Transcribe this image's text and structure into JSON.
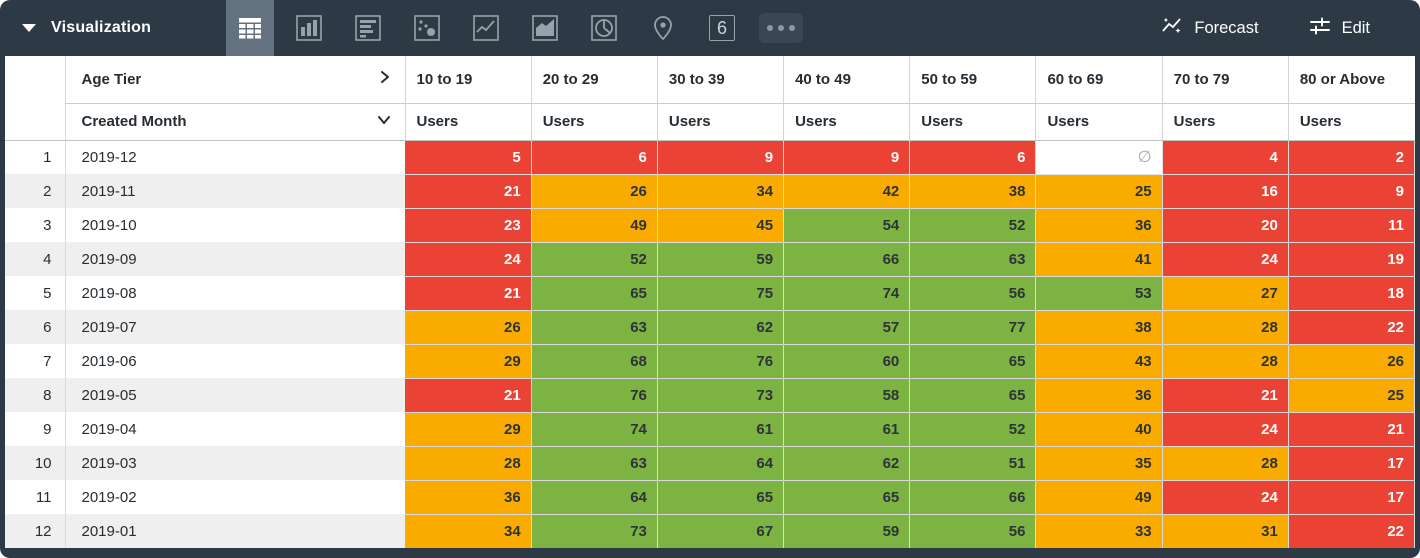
{
  "toolbar": {
    "title": "Visualization",
    "viz_types": [
      {
        "name": "table",
        "selected": true
      },
      {
        "name": "column-chart",
        "selected": false
      },
      {
        "name": "bar-chart",
        "selected": false
      },
      {
        "name": "scatter-plot",
        "selected": false
      },
      {
        "name": "line-chart",
        "selected": false
      },
      {
        "name": "area-chart",
        "selected": false
      },
      {
        "name": "pie-chart",
        "selected": false
      },
      {
        "name": "map",
        "selected": false
      },
      {
        "name": "single-value",
        "selected": false
      },
      {
        "name": "more-options",
        "selected": false
      }
    ],
    "single_value_label": "6",
    "forecast_label": "Forecast",
    "edit_label": "Edit"
  },
  "table": {
    "dimension_header": "Age Tier",
    "row_dimension_header": "Created Month",
    "measure_label": "Users",
    "tiers": [
      "10 to 19",
      "20 to 29",
      "30 to 39",
      "40 to 49",
      "50 to 59",
      "60 to 69",
      "70 to 79",
      "80 or Above"
    ],
    "rows": [
      {
        "index": "1",
        "month": "2019-12",
        "cells": [
          {
            "v": "5",
            "c": "red"
          },
          {
            "v": "6",
            "c": "red"
          },
          {
            "v": "9",
            "c": "red"
          },
          {
            "v": "9",
            "c": "red"
          },
          {
            "v": "6",
            "c": "red"
          },
          {
            "v": "∅",
            "c": "null"
          },
          {
            "v": "4",
            "c": "red"
          },
          {
            "v": "2",
            "c": "red"
          }
        ]
      },
      {
        "index": "2",
        "month": "2019-11",
        "cells": [
          {
            "v": "21",
            "c": "red"
          },
          {
            "v": "26",
            "c": "orange"
          },
          {
            "v": "34",
            "c": "orange"
          },
          {
            "v": "42",
            "c": "orange"
          },
          {
            "v": "38",
            "c": "orange"
          },
          {
            "v": "25",
            "c": "orange"
          },
          {
            "v": "16",
            "c": "red"
          },
          {
            "v": "9",
            "c": "red"
          }
        ]
      },
      {
        "index": "3",
        "month": "2019-10",
        "cells": [
          {
            "v": "23",
            "c": "red"
          },
          {
            "v": "49",
            "c": "orange"
          },
          {
            "v": "45",
            "c": "orange"
          },
          {
            "v": "54",
            "c": "green"
          },
          {
            "v": "52",
            "c": "green"
          },
          {
            "v": "36",
            "c": "orange"
          },
          {
            "v": "20",
            "c": "red"
          },
          {
            "v": "11",
            "c": "red"
          }
        ]
      },
      {
        "index": "4",
        "month": "2019-09",
        "cells": [
          {
            "v": "24",
            "c": "red"
          },
          {
            "v": "52",
            "c": "green"
          },
          {
            "v": "59",
            "c": "green"
          },
          {
            "v": "66",
            "c": "green"
          },
          {
            "v": "63",
            "c": "green"
          },
          {
            "v": "41",
            "c": "orange"
          },
          {
            "v": "24",
            "c": "red"
          },
          {
            "v": "19",
            "c": "red"
          }
        ]
      },
      {
        "index": "5",
        "month": "2019-08",
        "cells": [
          {
            "v": "21",
            "c": "red"
          },
          {
            "v": "65",
            "c": "green"
          },
          {
            "v": "75",
            "c": "green"
          },
          {
            "v": "74",
            "c": "green"
          },
          {
            "v": "56",
            "c": "green"
          },
          {
            "v": "53",
            "c": "green"
          },
          {
            "v": "27",
            "c": "orange"
          },
          {
            "v": "18",
            "c": "red"
          }
        ]
      },
      {
        "index": "6",
        "month": "2019-07",
        "cells": [
          {
            "v": "26",
            "c": "orange"
          },
          {
            "v": "63",
            "c": "green"
          },
          {
            "v": "62",
            "c": "green"
          },
          {
            "v": "57",
            "c": "green"
          },
          {
            "v": "77",
            "c": "green"
          },
          {
            "v": "38",
            "c": "orange"
          },
          {
            "v": "28",
            "c": "orange"
          },
          {
            "v": "22",
            "c": "red"
          }
        ]
      },
      {
        "index": "7",
        "month": "2019-06",
        "cells": [
          {
            "v": "29",
            "c": "orange"
          },
          {
            "v": "68",
            "c": "green"
          },
          {
            "v": "76",
            "c": "green"
          },
          {
            "v": "60",
            "c": "green"
          },
          {
            "v": "65",
            "c": "green"
          },
          {
            "v": "43",
            "c": "orange"
          },
          {
            "v": "28",
            "c": "orange"
          },
          {
            "v": "26",
            "c": "orange"
          }
        ]
      },
      {
        "index": "8",
        "month": "2019-05",
        "cells": [
          {
            "v": "21",
            "c": "red"
          },
          {
            "v": "76",
            "c": "green"
          },
          {
            "v": "73",
            "c": "green"
          },
          {
            "v": "58",
            "c": "green"
          },
          {
            "v": "65",
            "c": "green"
          },
          {
            "v": "36",
            "c": "orange"
          },
          {
            "v": "21",
            "c": "red"
          },
          {
            "v": "25",
            "c": "orange"
          }
        ]
      },
      {
        "index": "9",
        "month": "2019-04",
        "cells": [
          {
            "v": "29",
            "c": "orange"
          },
          {
            "v": "74",
            "c": "green"
          },
          {
            "v": "61",
            "c": "green"
          },
          {
            "v": "61",
            "c": "green"
          },
          {
            "v": "52",
            "c": "green"
          },
          {
            "v": "40",
            "c": "orange"
          },
          {
            "v": "24",
            "c": "red"
          },
          {
            "v": "21",
            "c": "red"
          }
        ]
      },
      {
        "index": "10",
        "month": "2019-03",
        "cells": [
          {
            "v": "28",
            "c": "orange"
          },
          {
            "v": "63",
            "c": "green"
          },
          {
            "v": "64",
            "c": "green"
          },
          {
            "v": "62",
            "c": "green"
          },
          {
            "v": "51",
            "c": "green"
          },
          {
            "v": "35",
            "c": "orange"
          },
          {
            "v": "28",
            "c": "orange"
          },
          {
            "v": "17",
            "c": "red"
          }
        ]
      },
      {
        "index": "11",
        "month": "2019-02",
        "cells": [
          {
            "v": "36",
            "c": "orange"
          },
          {
            "v": "64",
            "c": "green"
          },
          {
            "v": "65",
            "c": "green"
          },
          {
            "v": "65",
            "c": "green"
          },
          {
            "v": "66",
            "c": "green"
          },
          {
            "v": "49",
            "c": "orange"
          },
          {
            "v": "24",
            "c": "red"
          },
          {
            "v": "17",
            "c": "red"
          }
        ]
      },
      {
        "index": "12",
        "month": "2019-01",
        "cells": [
          {
            "v": "34",
            "c": "orange"
          },
          {
            "v": "73",
            "c": "green"
          },
          {
            "v": "67",
            "c": "green"
          },
          {
            "v": "59",
            "c": "green"
          },
          {
            "v": "56",
            "c": "green"
          },
          {
            "v": "33",
            "c": "orange"
          },
          {
            "v": "31",
            "c": "orange"
          },
          {
            "v": "22",
            "c": "red"
          }
        ]
      }
    ]
  },
  "colors": {
    "frame": "#2d3a46",
    "selected": "#64717e",
    "red": "#ea4335",
    "orange": "#f9ab00",
    "green": "#7cb342"
  }
}
